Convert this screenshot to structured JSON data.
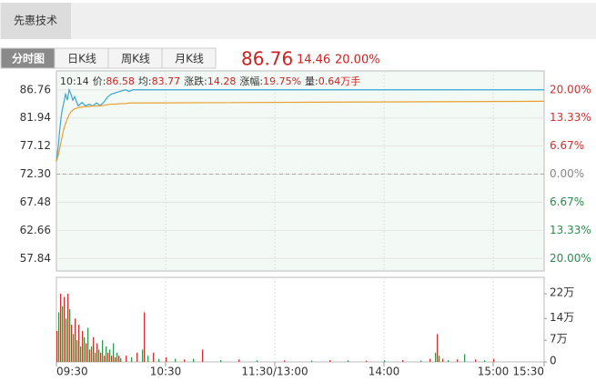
{
  "stock_tab": "先惠技术",
  "view_tabs": [
    "分时图",
    "日K线",
    "周K线",
    "月K线"
  ],
  "quote": {
    "price": "86.76",
    "change": "14.46",
    "change_pct": "20.00%"
  },
  "crosshair_info": {
    "time": "10:14",
    "parts": [
      {
        "label": "价:",
        "value": "86.58"
      },
      {
        "label": "均:",
        "value": "83.77"
      },
      {
        "label": "涨跌:",
        "value": "14.28"
      },
      {
        "label": "涨幅:",
        "value": "19.75%"
      },
      {
        "label": "量:",
        "value": "0.64万手"
      }
    ]
  },
  "chart_data": [
    {
      "type": "line",
      "xlim": [
        0,
        268
      ],
      "xticks": [
        {
          "value": 0,
          "label": "09:30"
        },
        {
          "value": 60,
          "label": "10:30"
        },
        {
          "value": 120,
          "label": "11:30/13:00"
        },
        {
          "value": 180,
          "label": "14:00"
        },
        {
          "value": 240,
          "label": "15:00"
        },
        {
          "value": 268,
          "label": "15:30"
        }
      ],
      "ylim": [
        55.7,
        90.0
      ],
      "yticks": [
        86.76,
        81.94,
        77.12,
        {
          "value": 72.3,
          "label": "72.30"
        },
        67.48,
        62.66,
        57.84
      ],
      "y2lim": [
        -22.96,
        24.48
      ],
      "y2ticks": [
        {
          "value": 20,
          "label": "20.00%"
        },
        {
          "value": 13.33,
          "label": "13.33%"
        },
        {
          "value": 6.67,
          "label": "6.67%"
        },
        {
          "value": 0,
          "label": "0.00%"
        },
        {
          "value": -6.67,
          "label": "6.67%"
        },
        {
          "value": -13.33,
          "label": "13.33%"
        },
        {
          "value": -20,
          "label": "20.00%"
        }
      ],
      "x": [
        0,
        1,
        2,
        3,
        4,
        5,
        6,
        7,
        8,
        9,
        10,
        12,
        14,
        16,
        18,
        20,
        22,
        24,
        26,
        28,
        30,
        32,
        35,
        38,
        40,
        42,
        268
      ],
      "series": [
        {
          "color": "#3aa6d8",
          "values": [
            74.5,
            77,
            80.5,
            83,
            84.5,
            86,
            85,
            86.76,
            86,
            85,
            85.6,
            84,
            84.6,
            84,
            84.3,
            84,
            84.5,
            84.1,
            84.6,
            85.5,
            86,
            86.2,
            86.5,
            86.76,
            86.5,
            86.76,
            86.76
          ]
        },
        {
          "color": "#e8a030",
          "values": [
            74.5,
            75.5,
            77,
            78.5,
            80,
            81,
            81.8,
            82.5,
            83,
            83.3,
            83.5,
            83.7,
            83.8,
            83.9,
            83.9,
            84,
            84,
            84,
            84.1,
            84.2,
            84.3,
            84.3,
            84.4,
            84.4,
            84.5,
            84.5,
            84.8
          ]
        }
      ]
    },
    {
      "type": "bar",
      "xlim": [
        0,
        268
      ],
      "ylim": [
        0,
        27.3
      ],
      "yticks": [
        {
          "value": 22,
          "label": "22万"
        },
        {
          "value": 14,
          "label": "14万"
        },
        {
          "value": 7,
          "label": "7万"
        },
        0
      ],
      "bar_colors": [
        "#d83030",
        "#2e9a4e"
      ],
      "x": [
        0,
        1,
        2,
        3,
        4,
        5,
        6,
        7,
        8,
        9,
        10,
        11,
        12,
        13,
        14,
        15,
        16,
        17,
        18,
        19,
        20,
        21,
        22,
        23,
        24,
        25,
        26,
        27,
        28,
        29,
        30,
        31,
        32,
        33,
        34,
        35,
        38,
        41,
        44,
        47,
        48,
        50,
        53,
        56,
        60,
        65,
        70,
        75,
        80,
        90,
        100,
        110,
        125,
        140,
        150,
        160,
        170,
        180,
        190,
        200,
        205,
        208,
        209,
        210,
        212,
        215,
        220,
        224,
        230,
        235,
        240
      ],
      "values": [
        10,
        16,
        22,
        18,
        21,
        14,
        22,
        17,
        12,
        9,
        14,
        7,
        12,
        5,
        10,
        8,
        6,
        11,
        4,
        5,
        8,
        3,
        6,
        4,
        3,
        7,
        2,
        5,
        3,
        4,
        2,
        6,
        1.5,
        3,
        2,
        1.2,
        2,
        1.5,
        3,
        4,
        16,
        2,
        3,
        1,
        1.5,
        1,
        0.8,
        1,
        4,
        0.6,
        0.8,
        0.5,
        0.5,
        0.4,
        0.6,
        0.5,
        0.4,
        0.5,
        0.6,
        0.4,
        1,
        3,
        9,
        2,
        1,
        0.6,
        0.8,
        2.5,
        0.8,
        0.5,
        1
      ]
    }
  ]
}
